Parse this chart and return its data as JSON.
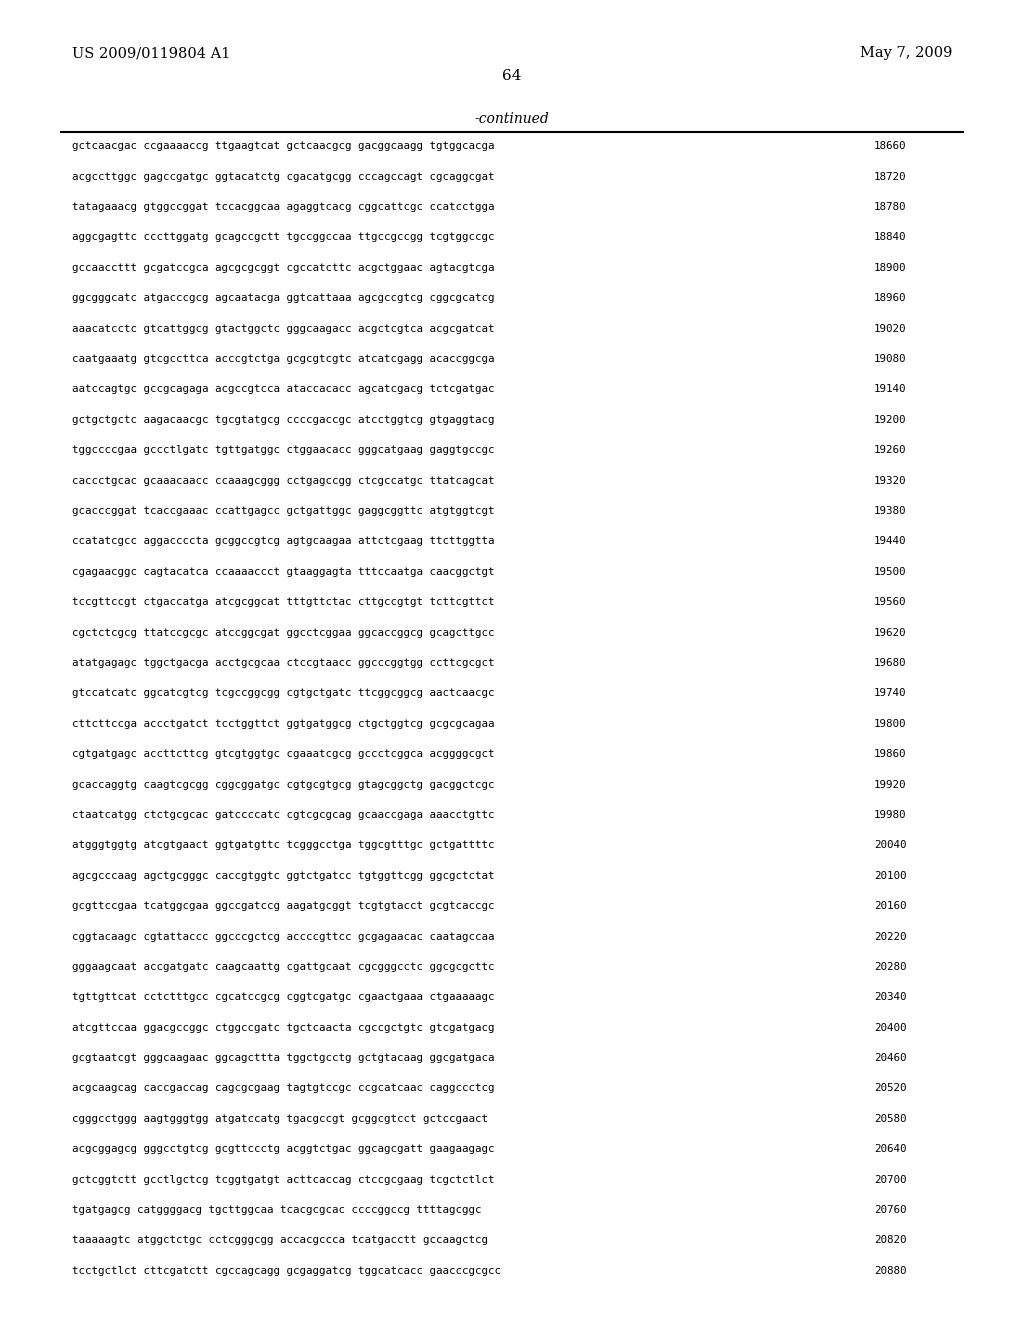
{
  "header_left": "US 2009/0119804 A1",
  "header_right": "May 7, 2009",
  "page_number": "64",
  "continued_label": "-continued",
  "background_color": "#ffffff",
  "text_color": "#000000",
  "sequence_lines": [
    {
      "seq": "gctcaacgac ccgaaaaccg ttgaagtcat gctcaacgcg gacggcaagg tgtggcacga",
      "num": "18660"
    },
    {
      "seq": "acgccttggc gagccgatgc ggtacatctg cgacatgcgg cccagccagt cgcaggcgat",
      "num": "18720"
    },
    {
      "seq": "tatagaaacg gtggccggat tccacggcaa agaggtcacg cggcattcgc ccatcctgga",
      "num": "18780"
    },
    {
      "seq": "aggcgagttc cccttggatg gcagccgctt tgccggccaa ttgccgccgg tcgtggccgc",
      "num": "18840"
    },
    {
      "seq": "gccaaccttt gcgatccgca agcgcgcggt cgccatcttc acgctggaac agtacgtcga",
      "num": "18900"
    },
    {
      "seq": "ggcgggcatc atgacccgcg agcaatacga ggtcattaaa agcgccgtcg cggcgcatcg",
      "num": "18960"
    },
    {
      "seq": "aaacatcctc gtcattggcg gtactggctc gggcaagacc acgctcgtca acgcgatcat",
      "num": "19020"
    },
    {
      "seq": "caatgaaatg gtcgccttca acccgtctga gcgcgtcgtc atcatcgagg acaccggcga",
      "num": "19080"
    },
    {
      "seq": "aatccagtgc gccgcagaga acgccgtcca ataccacacc agcatcgacg tctcgatgac",
      "num": "19140"
    },
    {
      "seq": "gctgctgctc aagacaacgc tgcgtatgcg ccccgaccgc atcctggtcg gtgaggtacg",
      "num": "19200"
    },
    {
      "seq": "tggccccgaa gccctlgatc tgttgatggc ctggaacacc gggcatgaag gaggtgccgc",
      "num": "19260"
    },
    {
      "seq": "caccctgcac gcaaacaacc ccaaagcggg cctgagccgg ctcgccatgc ttatcagcat",
      "num": "19320"
    },
    {
      "seq": "gcacccggat tcaccgaaac ccattgagcc gctgattggc gaggcggttc atgtggtcgt",
      "num": "19380"
    },
    {
      "seq": "ccatatcgcc aggaccccta gcggccgtcg agtgcaagaa attctcgaag ttcttggtta",
      "num": "19440"
    },
    {
      "seq": "cgagaacggc cagtacatca ccaaaaccct gtaaggagta tttccaatga caacggctgt",
      "num": "19500"
    },
    {
      "seq": "tccgttccgt ctgaccatga atcgcggcat tttgttctac cttgccgtgt tcttcgttct",
      "num": "19560"
    },
    {
      "seq": "cgctctcgcg ttatccgcgc atccggcgat ggcctcggaa ggcaccggcg gcagcttgcc",
      "num": "19620"
    },
    {
      "seq": "atatgagagc tggctgacga acctgcgcaa ctccgtaacc ggcccggtgg ccttcgcgct",
      "num": "19680"
    },
    {
      "seq": "gtccatcatc ggcatcgtcg tcgccggcgg cgtgctgatc ttcggcggcg aactcaacgc",
      "num": "19740"
    },
    {
      "seq": "cttcttccga accctgatct tcctggttct ggtgatggcg ctgctggtcg gcgcgcagaa",
      "num": "19800"
    },
    {
      "seq": "cgtgatgagc accttcttcg gtcgtggtgc cgaaatcgcg gccctcggca acggggcgct",
      "num": "19860"
    },
    {
      "seq": "gcaccaggtg caagtcgcgg cggcggatgc cgtgcgtgcg gtagcggctg gacggctcgc",
      "num": "19920"
    },
    {
      "seq": "ctaatcatgg ctctgcgcac gatccccatc cgtcgcgcag gcaaccgaga aaacctgttc",
      "num": "19980"
    },
    {
      "seq": "atgggtggtg atcgtgaact ggtgatgttc tcgggcctga tggcgtttgc gctgattttc",
      "num": "20040"
    },
    {
      "seq": "agcgcccaag agctgcgggc caccgtggtc ggtctgatcc tgtggttcgg ggcgctctat",
      "num": "20100"
    },
    {
      "seq": "gcgttccgaa tcatggcgaa ggccgatccg aagatgcggt tcgtgtacct gcgtcaccgc",
      "num": "20160"
    },
    {
      "seq": "cggtacaagc cgtattaccc ggcccgctcg accccgttcc gcgagaacac caatagccaa",
      "num": "20220"
    },
    {
      "seq": "gggaagcaat accgatgatc caagcaattg cgattgcaat cgcgggcctc ggcgcgcttc",
      "num": "20280"
    },
    {
      "seq": "tgttgttcat cctctttgcc cgcatccgcg cggtcgatgc cgaactgaaa ctgaaaaagc",
      "num": "20340"
    },
    {
      "seq": "atcgttccaa ggacgccggc ctggccgatc tgctcaacta cgccgctgtc gtcgatgacg",
      "num": "20400"
    },
    {
      "seq": "gcgtaatcgt gggcaagaac ggcagcttta tggctgcctg gctgtacaag ggcgatgaca",
      "num": "20460"
    },
    {
      "seq": "acgcaagcag caccgaccag cagcgcgaag tagtgtccgc ccgcatcaac caggccctcg",
      "num": "20520"
    },
    {
      "seq": "cgggcctggg aagtgggtgg atgatccatg tgacgccgt gcggcgtcct gctccgaact",
      "num": "20580"
    },
    {
      "seq": "acgcggagcg gggcctgtcg gcgttccctg acggtctgac ggcagcgatt gaagaagagc",
      "num": "20640"
    },
    {
      "seq": "gctcggtctt gcctlgctcg tcggtgatgt acttcaccag ctccgcgaag tcgctctlct",
      "num": "20700"
    },
    {
      "seq": "tgatgagcg catggggacg tgcttggcaa tcacgcgcac ccccggccg ttttagcggc",
      "num": "20760"
    },
    {
      "seq": "taaaaagtc atggctctgc cctcgggcgg accacgccca tcatgacctt gccaagctcg",
      "num": "20820"
    },
    {
      "seq": "tcctgctlct cttcgatctt cgccagcagg gcgaggatcg tggcatcacc gaacccgcgcc",
      "num": "20880"
    }
  ]
}
